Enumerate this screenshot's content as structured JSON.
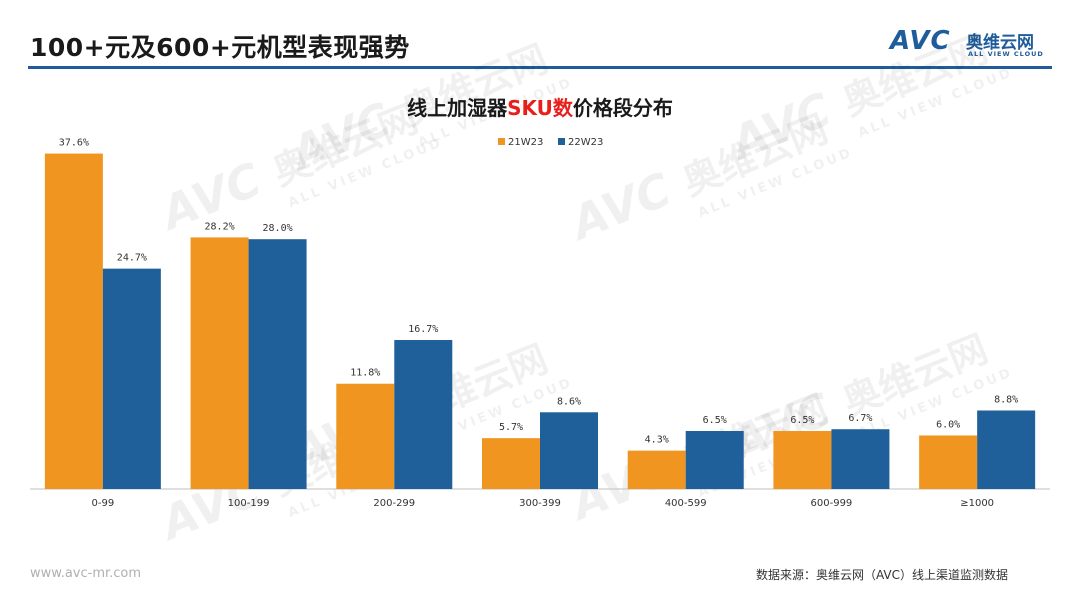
{
  "header": {
    "title": "100+元及600+元机型表现强势"
  },
  "logo": {
    "brand": "AVC",
    "name_cn": "奥维云网",
    "name_en": "ALL VIEW CLOUD"
  },
  "watermark": {
    "brand": "AVC",
    "name_cn": "奥维云网",
    "name_en": "ALL VIEW CLOUD"
  },
  "chart_data": {
    "type": "bar",
    "title_prefix": "线上加湿器",
    "title_highlight": "SKU数",
    "title_suffix": "价格段分布",
    "categories": [
      "0-99",
      "100-199",
      "200-299",
      "300-399",
      "400-599",
      "600-999",
      "≥1000"
    ],
    "series": [
      {
        "name": "21W23",
        "color": "#f0951f",
        "values": [
          37.6,
          28.2,
          11.8,
          5.7,
          4.3,
          6.5,
          6.0
        ],
        "labels": [
          "37.6%",
          "28.2%",
          "11.8%",
          "5.7%",
          "4.3%",
          "6.5%",
          "6.0%"
        ]
      },
      {
        "name": "22W23",
        "color": "#1f5f9a",
        "values": [
          24.7,
          28.0,
          16.7,
          8.6,
          6.5,
          6.7,
          8.8
        ],
        "labels": [
          "24.7%",
          "28.0%",
          "16.7%",
          "8.6%",
          "6.5%",
          "6.7%",
          "8.8%"
        ]
      }
    ],
    "ylim": [
      0,
      38
    ],
    "legend_position": "top-center",
    "grid": false
  },
  "footer": {
    "url": "www.avc-mr.com",
    "source": "数据来源：奥维云网（AVC）线上渠道监测数据"
  }
}
